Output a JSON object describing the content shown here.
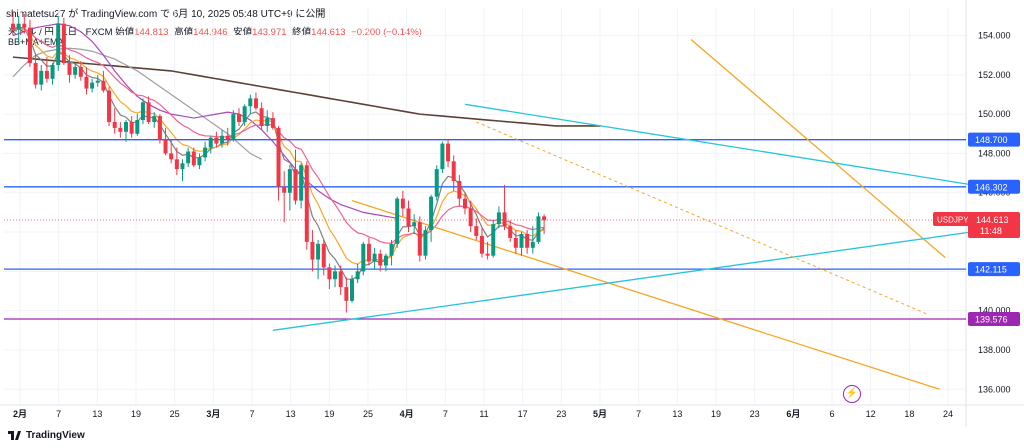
{
  "header": {
    "author_line": "shimatetsu27 が TradingView.com で 6月 10, 2025 05:48 UTC+9 に公開",
    "symbol_line": "米ドル / 円 · 1日 · FXCM",
    "open_label": "始値",
    "open": "144.813",
    "high_label": "高値",
    "high": "144.946",
    "low_label": "安値",
    "low": "143.971",
    "close_label": "終値",
    "close": "144.613",
    "change": "−0.200 (−0.14%)",
    "indicators": "BB+MA+EMA"
  },
  "brand": "TradingView",
  "colors": {
    "up": "#089981",
    "down": "#f23645",
    "level": "#2962ff",
    "level_purple": "#9c27b0",
    "trend_orange": "#f5a623",
    "trend_cyan": "#26c6da",
    "ema_fast": "#f9a825",
    "ema_mid": "#f06292",
    "bb_mid": "#808080",
    "ma_long": "#ab47bc",
    "ma_200": "#5d4037",
    "bb_outer": "#9e9e9e"
  },
  "chart_data": {
    "type": "candlestick",
    "symbol": "USDJPY",
    "ylim": [
      135.2,
      155.4
    ],
    "y_ticks": [
      136.0,
      138.0,
      140.0,
      142.0,
      144.0,
      146.0,
      148.0,
      150.0,
      152.0,
      154.0
    ],
    "x_tick_labels": [
      "2月",
      "7",
      "13",
      "19",
      "25",
      "3月",
      "7",
      "13",
      "19",
      "25",
      "4月",
      "7",
      "11",
      "17",
      "23",
      "5月",
      "7",
      "13",
      "19",
      "23",
      "6月",
      "6",
      "12",
      "18",
      "24"
    ],
    "candles": [
      {
        "o": 154.6,
        "h": 155.2,
        "l": 154.0,
        "c": 154.3
      },
      {
        "o": 154.3,
        "h": 155.0,
        "l": 153.6,
        "c": 154.6
      },
      {
        "o": 154.6,
        "h": 155.1,
        "l": 154.1,
        "c": 154.4
      },
      {
        "o": 154.4,
        "h": 154.8,
        "l": 152.4,
        "c": 152.6
      },
      {
        "o": 152.6,
        "h": 153.0,
        "l": 151.3,
        "c": 151.5
      },
      {
        "o": 151.5,
        "h": 152.5,
        "l": 151.2,
        "c": 152.2
      },
      {
        "o": 152.2,
        "h": 152.9,
        "l": 151.6,
        "c": 151.8
      },
      {
        "o": 151.8,
        "h": 152.6,
        "l": 151.5,
        "c": 152.5
      },
      {
        "o": 152.5,
        "h": 155.0,
        "l": 152.2,
        "c": 154.6
      },
      {
        "o": 154.6,
        "h": 154.9,
        "l": 152.5,
        "c": 152.6
      },
      {
        "o": 152.6,
        "h": 153.0,
        "l": 151.6,
        "c": 152.0
      },
      {
        "o": 152.0,
        "h": 152.6,
        "l": 151.8,
        "c": 152.4
      },
      {
        "o": 152.4,
        "h": 152.7,
        "l": 151.7,
        "c": 151.9
      },
      {
        "o": 151.9,
        "h": 152.4,
        "l": 151.0,
        "c": 151.3
      },
      {
        "o": 151.3,
        "h": 151.8,
        "l": 151.1,
        "c": 151.6
      },
      {
        "o": 151.6,
        "h": 152.0,
        "l": 151.4,
        "c": 151.7
      },
      {
        "o": 151.7,
        "h": 152.2,
        "l": 151.1,
        "c": 151.2
      },
      {
        "o": 151.2,
        "h": 151.4,
        "l": 149.4,
        "c": 149.6
      },
      {
        "o": 149.6,
        "h": 150.3,
        "l": 149.0,
        "c": 149.3
      },
      {
        "o": 149.3,
        "h": 149.6,
        "l": 148.8,
        "c": 149.1
      },
      {
        "o": 149.1,
        "h": 149.7,
        "l": 148.6,
        "c": 149.6
      },
      {
        "o": 149.6,
        "h": 149.9,
        "l": 148.8,
        "c": 149.0
      },
      {
        "o": 149.0,
        "h": 150.0,
        "l": 148.9,
        "c": 149.7
      },
      {
        "o": 149.7,
        "h": 150.8,
        "l": 149.5,
        "c": 150.6
      },
      {
        "o": 150.6,
        "h": 150.9,
        "l": 149.5,
        "c": 149.6
      },
      {
        "o": 149.6,
        "h": 150.1,
        "l": 149.3,
        "c": 149.9
      },
      {
        "o": 149.9,
        "h": 150.0,
        "l": 148.5,
        "c": 148.7
      },
      {
        "o": 148.7,
        "h": 149.3,
        "l": 147.9,
        "c": 148.0
      },
      {
        "o": 148.0,
        "h": 148.7,
        "l": 147.5,
        "c": 147.7
      },
      {
        "o": 147.7,
        "h": 148.3,
        "l": 146.9,
        "c": 147.2
      },
      {
        "o": 147.2,
        "h": 147.7,
        "l": 146.6,
        "c": 147.5
      },
      {
        "o": 147.5,
        "h": 148.3,
        "l": 147.3,
        "c": 148.1
      },
      {
        "o": 148.1,
        "h": 148.3,
        "l": 147.3,
        "c": 147.4
      },
      {
        "o": 147.4,
        "h": 148.0,
        "l": 147.2,
        "c": 147.8
      },
      {
        "o": 147.8,
        "h": 148.6,
        "l": 147.6,
        "c": 148.3
      },
      {
        "o": 148.3,
        "h": 148.9,
        "l": 148.0,
        "c": 148.8
      },
      {
        "o": 148.8,
        "h": 149.1,
        "l": 148.3,
        "c": 148.5
      },
      {
        "o": 148.5,
        "h": 149.2,
        "l": 148.3,
        "c": 148.9
      },
      {
        "o": 148.9,
        "h": 149.3,
        "l": 148.4,
        "c": 148.7
      },
      {
        "o": 148.7,
        "h": 150.2,
        "l": 148.6,
        "c": 150.0
      },
      {
        "o": 150.0,
        "h": 150.3,
        "l": 149.4,
        "c": 149.6
      },
      {
        "o": 149.6,
        "h": 150.5,
        "l": 149.4,
        "c": 150.4
      },
      {
        "o": 150.4,
        "h": 151.0,
        "l": 150.0,
        "c": 150.8
      },
      {
        "o": 150.8,
        "h": 151.1,
        "l": 150.2,
        "c": 150.3
      },
      {
        "o": 150.3,
        "h": 150.6,
        "l": 149.2,
        "c": 149.4
      },
      {
        "o": 149.4,
        "h": 150.2,
        "l": 149.1,
        "c": 149.8
      },
      {
        "o": 149.8,
        "h": 150.1,
        "l": 149.2,
        "c": 149.3
      },
      {
        "o": 149.3,
        "h": 149.4,
        "l": 145.6,
        "c": 146.3
      },
      {
        "o": 146.3,
        "h": 147.1,
        "l": 144.5,
        "c": 146.0
      },
      {
        "o": 146.0,
        "h": 147.4,
        "l": 145.1,
        "c": 147.2
      },
      {
        "o": 147.2,
        "h": 148.2,
        "l": 145.4,
        "c": 145.6
      },
      {
        "o": 145.6,
        "h": 147.5,
        "l": 145.2,
        "c": 147.4
      },
      {
        "o": 147.4,
        "h": 147.6,
        "l": 143.1,
        "c": 143.5
      },
      {
        "o": 143.5,
        "h": 144.1,
        "l": 142.0,
        "c": 142.6
      },
      {
        "o": 142.6,
        "h": 143.6,
        "l": 141.6,
        "c": 143.4
      },
      {
        "o": 143.4,
        "h": 143.6,
        "l": 141.8,
        "c": 142.2
      },
      {
        "o": 142.2,
        "h": 142.4,
        "l": 141.1,
        "c": 141.6
      },
      {
        "o": 141.6,
        "h": 142.3,
        "l": 141.2,
        "c": 142.0
      },
      {
        "o": 142.0,
        "h": 142.3,
        "l": 140.8,
        "c": 141.2
      },
      {
        "o": 141.2,
        "h": 141.7,
        "l": 139.9,
        "c": 140.5
      },
      {
        "o": 140.5,
        "h": 141.8,
        "l": 140.4,
        "c": 141.6
      },
      {
        "o": 141.6,
        "h": 142.4,
        "l": 141.4,
        "c": 142.0
      },
      {
        "o": 142.0,
        "h": 143.5,
        "l": 141.8,
        "c": 143.4
      },
      {
        "o": 143.4,
        "h": 143.7,
        "l": 142.3,
        "c": 142.5
      },
      {
        "o": 142.5,
        "h": 143.2,
        "l": 142.1,
        "c": 142.9
      },
      {
        "o": 142.9,
        "h": 143.1,
        "l": 142.0,
        "c": 142.3
      },
      {
        "o": 142.3,
        "h": 142.9,
        "l": 142.0,
        "c": 142.8
      },
      {
        "o": 142.8,
        "h": 143.6,
        "l": 142.3,
        "c": 143.4
      },
      {
        "o": 143.4,
        "h": 145.8,
        "l": 143.2,
        "c": 145.7
      },
      {
        "o": 145.7,
        "h": 146.1,
        "l": 144.8,
        "c": 145.2
      },
      {
        "o": 145.2,
        "h": 145.6,
        "l": 144.0,
        "c": 144.3
      },
      {
        "o": 144.3,
        "h": 144.9,
        "l": 143.9,
        "c": 144.5
      },
      {
        "o": 144.5,
        "h": 144.8,
        "l": 142.5,
        "c": 142.8
      },
      {
        "o": 142.8,
        "h": 144.3,
        "l": 142.6,
        "c": 144.1
      },
      {
        "o": 144.1,
        "h": 145.9,
        "l": 143.5,
        "c": 145.8
      },
      {
        "o": 145.8,
        "h": 147.4,
        "l": 145.6,
        "c": 147.2
      },
      {
        "o": 147.2,
        "h": 148.6,
        "l": 147.0,
        "c": 148.5
      },
      {
        "o": 148.5,
        "h": 148.7,
        "l": 147.3,
        "c": 147.6
      },
      {
        "o": 147.6,
        "h": 147.9,
        "l": 146.1,
        "c": 146.6
      },
      {
        "o": 146.6,
        "h": 146.9,
        "l": 145.3,
        "c": 145.7
      },
      {
        "o": 145.7,
        "h": 146.0,
        "l": 144.9,
        "c": 145.2
      },
      {
        "o": 145.2,
        "h": 145.6,
        "l": 144.0,
        "c": 144.3
      },
      {
        "o": 144.3,
        "h": 144.7,
        "l": 143.6,
        "c": 143.8
      },
      {
        "o": 143.8,
        "h": 144.2,
        "l": 142.7,
        "c": 142.9
      },
      {
        "o": 142.9,
        "h": 143.5,
        "l": 142.6,
        "c": 142.8
      },
      {
        "o": 142.8,
        "h": 144.6,
        "l": 142.7,
        "c": 144.4
      },
      {
        "o": 144.4,
        "h": 145.3,
        "l": 144.2,
        "c": 145.0
      },
      {
        "o": 145.0,
        "h": 146.4,
        "l": 144.1,
        "c": 144.3
      },
      {
        "o": 144.3,
        "h": 144.6,
        "l": 143.5,
        "c": 143.7
      },
      {
        "o": 143.7,
        "h": 144.1,
        "l": 142.9,
        "c": 143.2
      },
      {
        "o": 143.2,
        "h": 144.0,
        "l": 142.8,
        "c": 143.9
      },
      {
        "o": 143.9,
        "h": 144.1,
        "l": 142.9,
        "c": 143.2
      },
      {
        "o": 143.2,
        "h": 144.3,
        "l": 142.9,
        "c": 143.5
      },
      {
        "o": 143.5,
        "h": 145.0,
        "l": 143.4,
        "c": 144.8
      },
      {
        "o": 144.8,
        "h": 144.9,
        "l": 143.9,
        "c": 144.6
      }
    ],
    "overlays": {
      "ma_200": [
        152.9,
        152.85,
        152.8,
        152.75,
        152.7,
        152.65,
        152.6,
        152.55,
        152.5,
        152.45,
        152.4,
        152.35,
        152.3,
        152.25,
        152.2,
        152.1,
        152.0,
        151.9,
        151.8,
        151.7,
        151.6,
        151.5,
        151.4,
        151.3,
        151.2,
        151.1,
        151.0,
        150.9,
        150.8,
        150.7,
        150.6,
        150.5,
        150.4,
        150.3,
        150.2,
        150.1,
        150.0,
        149.95,
        149.9,
        149.85,
        149.8,
        149.75,
        149.7,
        149.65,
        149.6,
        149.55,
        149.5,
        149.45,
        149.4,
        149.4,
        149.4,
        149.4,
        149.4
      ],
      "bb_upper": [
        151.9,
        152.5,
        153.0,
        153.2,
        153.3,
        153.35,
        153.3,
        153.2,
        153.0,
        152.8,
        152.5,
        152.2,
        151.8,
        151.4,
        151.0,
        150.6,
        150.2,
        149.8,
        149.4,
        149.0,
        148.5,
        148.0,
        147.7
      ],
      "ma_long": [
        154.0,
        154.2,
        154.4,
        154.5,
        154.6,
        154.5,
        154.2,
        153.7,
        153.0,
        152.2,
        151.5,
        150.9,
        150.5,
        150.2,
        150.0,
        149.9,
        149.8,
        149.9,
        150.0,
        150.1,
        150.0,
        149.7,
        149.2,
        148.6,
        147.9,
        147.2,
        146.6,
        146.1,
        145.7,
        145.4,
        145.2,
        145.0,
        144.9,
        144.8,
        144.7
      ]
    },
    "levels": [
      {
        "label": "148.700",
        "value": 148.7,
        "color": "level"
      },
      {
        "label": "146.302",
        "value": 146.302,
        "color": "level"
      },
      {
        "label": "142.115",
        "value": 142.115,
        "color": "level"
      },
      {
        "label": "139.576",
        "value": 139.576,
        "color": "level_purple"
      }
    ],
    "trendlines": [
      {
        "color": "trend_orange",
        "x1": 120,
        "y1": 153.8,
        "x2": 165,
        "y2": 142.7
      },
      {
        "color": "trend_orange",
        "x1": 60,
        "y1": 145.6,
        "x2": 164,
        "y2": 136.0
      },
      {
        "color": "trend_cyan",
        "x1": 80,
        "y1": 150.5,
        "x2": 172,
        "y2": 146.3
      },
      {
        "color": "trend_cyan",
        "x1": 46,
        "y1": 139.0,
        "x2": 172,
        "y2": 144.1
      }
    ],
    "price_tag": {
      "symbol": "USDJPY",
      "price": "144.613",
      "countdown": "11:48"
    }
  }
}
